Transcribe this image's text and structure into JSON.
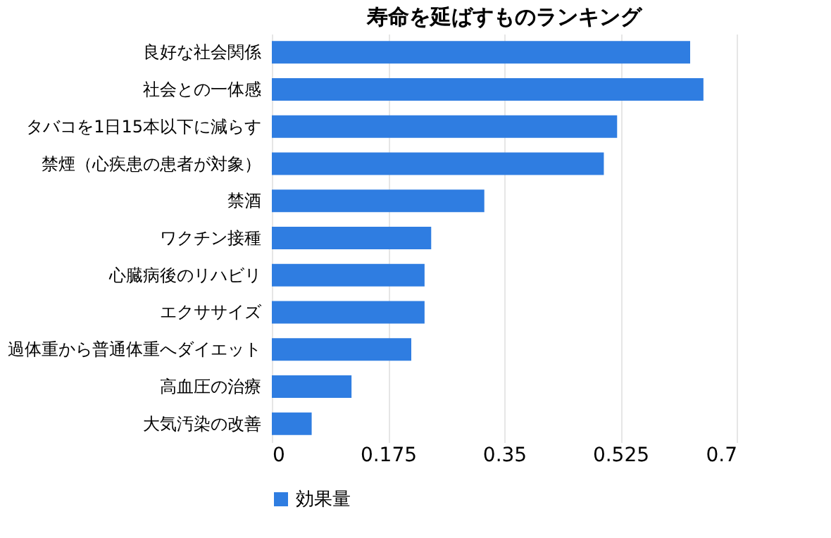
{
  "chart_data": {
    "type": "bar",
    "orientation": "horizontal",
    "title": "寿命を延ばすものランキング",
    "categories": [
      "良好な社会関係",
      "社会との一体感",
      "タバコを1日15本以下に減らす",
      "禁煙（心疾患の患者が対象）",
      "禁酒",
      "ワクチン接種",
      "心臓病後のリハビリ",
      "エクササイズ",
      "過体重から普通体重へダイエット",
      "高血圧の治療",
      "大気汚染の改善"
    ],
    "series": [
      {
        "name": "効果量",
        "color": "#2f7de1",
        "values": [
          0.63,
          0.65,
          0.52,
          0.5,
          0.32,
          0.24,
          0.23,
          0.23,
          0.21,
          0.12,
          0.06
        ]
      }
    ],
    "xlim": [
      0,
      0.7
    ],
    "xticks": [
      0,
      0.175,
      0.35,
      0.525,
      0.7
    ],
    "grid": "x",
    "legend": "bottom"
  }
}
